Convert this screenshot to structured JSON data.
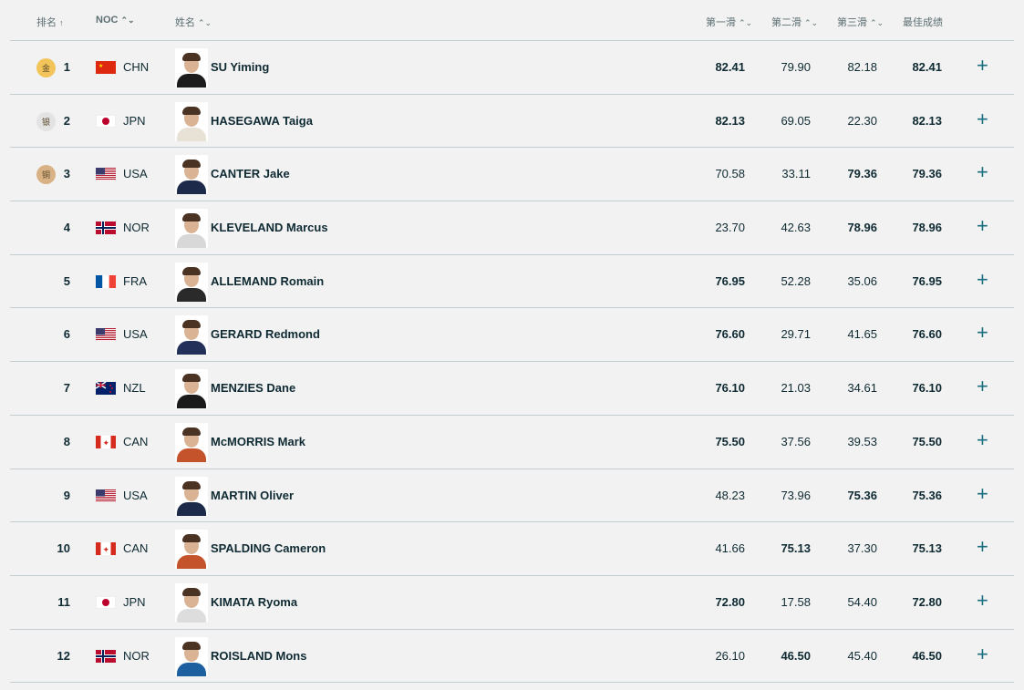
{
  "headers": {
    "rank": "排名",
    "noc": "NOC",
    "name": "姓名",
    "run1": "第一滑",
    "run2": "第二滑",
    "run3": "第三滑",
    "best": "最佳成绩"
  },
  "icons": {
    "sort_asc": "arrow-up-icon",
    "sortable": "sort-icon",
    "expand": "plus-icon"
  },
  "colors": {
    "gold": "#f2c45a",
    "silver": "#e3e3e3",
    "bronze": "#d8b184",
    "accent": "#1a6e80"
  },
  "rows": [
    {
      "medal": "金",
      "medal_type": "gold",
      "rank": "1",
      "noc": "CHN",
      "name": "SU Yiming",
      "run1": "82.41",
      "run2": "79.90",
      "run3": "82.18",
      "best": "82.41",
      "best_run": 1,
      "expand": "+"
    },
    {
      "medal": "银",
      "medal_type": "silver",
      "rank": "2",
      "noc": "JPN",
      "name": "HASEGAWA Taiga",
      "run1": "82.13",
      "run2": "69.05",
      "run3": "22.30",
      "best": "82.13",
      "best_run": 1,
      "expand": "+"
    },
    {
      "medal": "铜",
      "medal_type": "bronze",
      "rank": "3",
      "noc": "USA",
      "name": "CANTER Jake",
      "run1": "70.58",
      "run2": "33.11",
      "run3": "79.36",
      "best": "79.36",
      "best_run": 3,
      "expand": "+"
    },
    {
      "rank": "4",
      "noc": "NOR",
      "name": "KLEVELAND Marcus",
      "run1": "23.70",
      "run2": "42.63",
      "run3": "78.96",
      "best": "78.96",
      "best_run": 3,
      "expand": "+"
    },
    {
      "rank": "5",
      "noc": "FRA",
      "name": "ALLEMAND Romain",
      "run1": "76.95",
      "run2": "52.28",
      "run3": "35.06",
      "best": "76.95",
      "best_run": 1,
      "expand": "+"
    },
    {
      "rank": "6",
      "noc": "USA",
      "name": "GERARD Redmond",
      "run1": "76.60",
      "run2": "29.71",
      "run3": "41.65",
      "best": "76.60",
      "best_run": 1,
      "expand": "+"
    },
    {
      "rank": "7",
      "noc": "NZL",
      "name": "MENZIES Dane",
      "run1": "76.10",
      "run2": "21.03",
      "run3": "34.61",
      "best": "76.10",
      "best_run": 1,
      "expand": "+"
    },
    {
      "rank": "8",
      "noc": "CAN",
      "name": "McMORRIS Mark",
      "run1": "75.50",
      "run2": "37.56",
      "run3": "39.53",
      "best": "75.50",
      "best_run": 1,
      "expand": "+"
    },
    {
      "rank": "9",
      "noc": "USA",
      "name": "MARTIN Oliver",
      "run1": "48.23",
      "run2": "73.96",
      "run3": "75.36",
      "best": "75.36",
      "best_run": 3,
      "expand": "+"
    },
    {
      "rank": "10",
      "noc": "CAN",
      "name": "SPALDING Cameron",
      "run1": "41.66",
      "run2": "75.13",
      "run3": "37.30",
      "best": "75.13",
      "best_run": 2,
      "expand": "+"
    },
    {
      "rank": "11",
      "noc": "JPN",
      "name": "KIMATA Ryoma",
      "run1": "72.80",
      "run2": "17.58",
      "run3": "54.40",
      "best": "72.80",
      "best_run": 1,
      "expand": "+"
    },
    {
      "rank": "12",
      "noc": "NOR",
      "name": "ROISLAND Mons",
      "run1": "26.10",
      "run2": "46.50",
      "run3": "45.40",
      "best": "46.50",
      "best_run": 2,
      "expand": "+"
    }
  ]
}
